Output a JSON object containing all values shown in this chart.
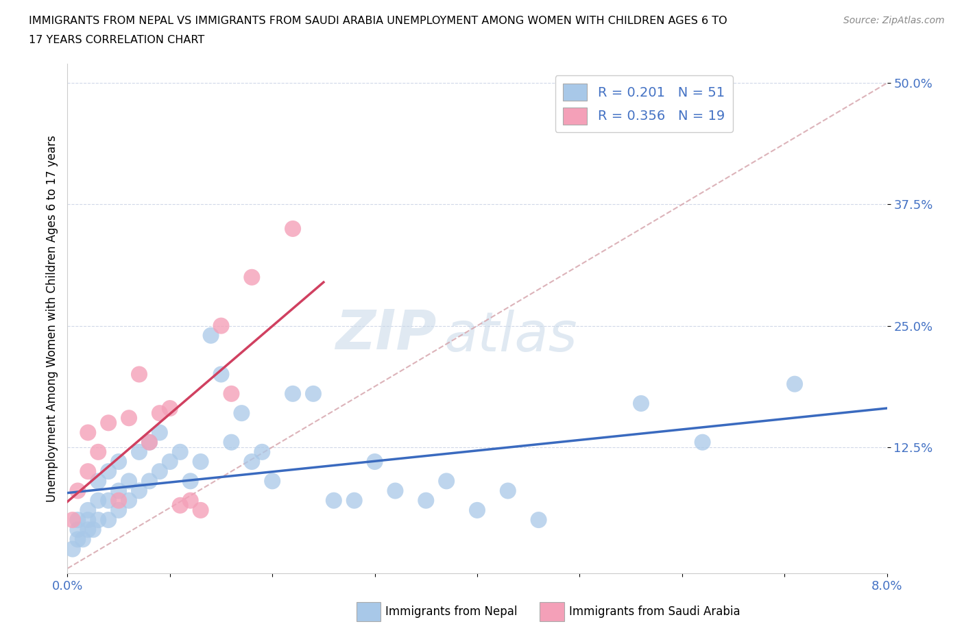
{
  "title_line1": "IMMIGRANTS FROM NEPAL VS IMMIGRANTS FROM SAUDI ARABIA UNEMPLOYMENT AMONG WOMEN WITH CHILDREN AGES 6 TO",
  "title_line2": "17 YEARS CORRELATION CHART",
  "source": "Source: ZipAtlas.com",
  "ylabel": "Unemployment Among Women with Children Ages 6 to 17 years",
  "xlabel_nepal": "Immigrants from Nepal",
  "xlabel_saudi": "Immigrants from Saudi Arabia",
  "xlim": [
    0.0,
    0.08
  ],
  "ylim": [
    -0.005,
    0.52
  ],
  "ytick_vals": [
    0.125,
    0.25,
    0.375,
    0.5
  ],
  "ytick_labels": [
    "12.5%",
    "25.0%",
    "37.5%",
    "50.0%"
  ],
  "xtick_vals": [
    0.0,
    0.01,
    0.02,
    0.03,
    0.04,
    0.05,
    0.06,
    0.07,
    0.08
  ],
  "xtick_labels": [
    "0.0%",
    "",
    "",
    "",
    "",
    "",
    "",
    "",
    "8.0%"
  ],
  "R_nepal": 0.201,
  "N_nepal": 51,
  "R_saudi": 0.356,
  "N_saudi": 19,
  "color_nepal": "#a8c8e8",
  "color_saudi": "#f4a0b8",
  "color_nepal_line": "#3a6abf",
  "color_saudi_line": "#d04060",
  "color_diagonal": "#d4a0a8",
  "watermark_zip": "ZIP",
  "watermark_atlas": "atlas",
  "nepal_x": [
    0.0005,
    0.001,
    0.001,
    0.001,
    0.0015,
    0.002,
    0.002,
    0.002,
    0.0025,
    0.003,
    0.003,
    0.003,
    0.004,
    0.004,
    0.004,
    0.005,
    0.005,
    0.005,
    0.006,
    0.006,
    0.007,
    0.007,
    0.008,
    0.008,
    0.009,
    0.009,
    0.01,
    0.011,
    0.012,
    0.013,
    0.014,
    0.015,
    0.016,
    0.017,
    0.018,
    0.019,
    0.02,
    0.022,
    0.024,
    0.026,
    0.028,
    0.03,
    0.032,
    0.035,
    0.037,
    0.04,
    0.043,
    0.046,
    0.056,
    0.062,
    0.071
  ],
  "nepal_y": [
    0.02,
    0.03,
    0.04,
    0.05,
    0.03,
    0.04,
    0.05,
    0.06,
    0.04,
    0.05,
    0.07,
    0.09,
    0.05,
    0.07,
    0.1,
    0.06,
    0.08,
    0.11,
    0.07,
    0.09,
    0.08,
    0.12,
    0.09,
    0.13,
    0.1,
    0.14,
    0.11,
    0.12,
    0.09,
    0.11,
    0.24,
    0.2,
    0.13,
    0.16,
    0.11,
    0.12,
    0.09,
    0.18,
    0.18,
    0.07,
    0.07,
    0.11,
    0.08,
    0.07,
    0.09,
    0.06,
    0.08,
    0.05,
    0.17,
    0.13,
    0.19
  ],
  "saudi_x": [
    0.0005,
    0.001,
    0.002,
    0.002,
    0.003,
    0.004,
    0.005,
    0.006,
    0.007,
    0.008,
    0.009,
    0.01,
    0.011,
    0.012,
    0.013,
    0.015,
    0.016,
    0.018,
    0.022
  ],
  "saudi_y": [
    0.05,
    0.08,
    0.1,
    0.14,
    0.12,
    0.15,
    0.07,
    0.155,
    0.2,
    0.13,
    0.16,
    0.165,
    0.065,
    0.07,
    0.06,
    0.25,
    0.18,
    0.3,
    0.35
  ]
}
